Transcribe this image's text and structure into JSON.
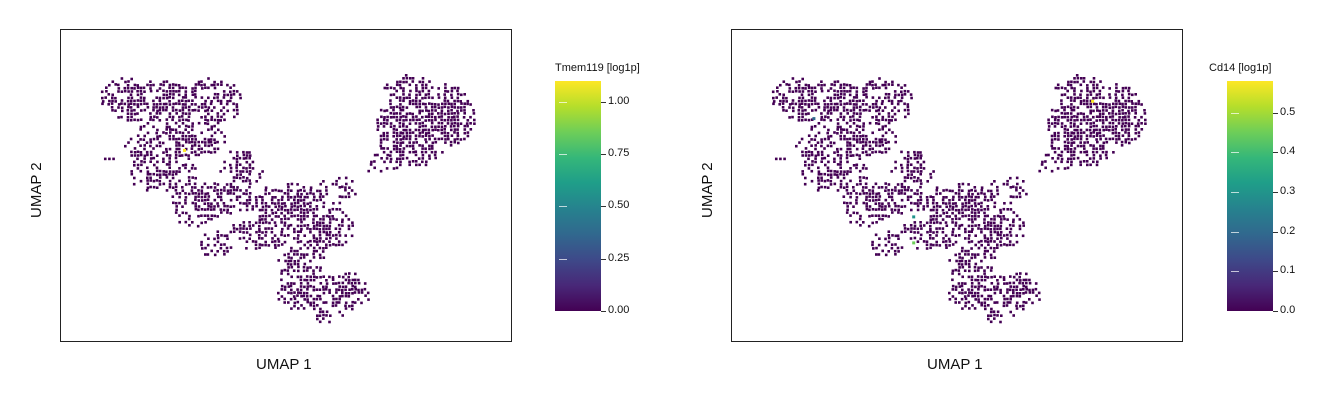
{
  "chart_data": [
    {
      "type": "scatter",
      "title": "",
      "xlabel": "UMAP 1",
      "ylabel": "UMAP 2",
      "colorbar": {
        "title": "Tmem119 [log1p]",
        "min": 0.0,
        "max": 1.1,
        "ticks": [
          "0.00",
          "0.25",
          "0.50",
          "0.75",
          "1.00"
        ],
        "tick_values": [
          0.0,
          0.25,
          0.5,
          0.75,
          1.0
        ],
        "colormap": "viridis"
      },
      "highlight_points": [
        {
          "x": 0.25,
          "y": 0.63,
          "value": 1.1
        }
      ]
    },
    {
      "type": "scatter",
      "title": "",
      "xlabel": "UMAP 1",
      "ylabel": "UMAP 2",
      "colorbar": {
        "title": "Cd14 [log1p]",
        "min": 0.0,
        "max": 0.58,
        "ticks": [
          "0.0",
          "0.1",
          "0.2",
          "0.3",
          "0.4",
          "0.5"
        ],
        "tick_values": [
          0.0,
          0.1,
          0.2,
          0.3,
          0.4,
          0.5
        ],
        "colormap": "viridis"
      },
      "highlight_points": [
        {
          "x": 0.82,
          "y": 0.8,
          "value": 0.58
        },
        {
          "x": 0.39,
          "y": 0.4,
          "value": 0.3
        },
        {
          "x": 0.39,
          "y": 0.31,
          "value": 0.45
        },
        {
          "x": 0.15,
          "y": 0.74,
          "value": 0.2
        }
      ]
    }
  ],
  "colors": {
    "base_point": "#440154",
    "viridis": [
      "#440154",
      "#482878",
      "#3e4989",
      "#31688e",
      "#26828e",
      "#1f9e89",
      "#35b779",
      "#6ece58",
      "#b5de2b",
      "#fde725"
    ]
  }
}
